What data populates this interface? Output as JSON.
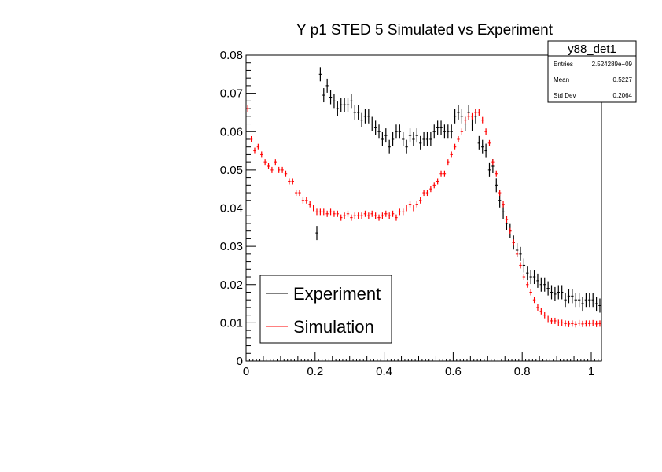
{
  "chart_data": {
    "type": "scatter",
    "title": "Y p1 STED 5 Simulated vs Experiment",
    "xlabel": "",
    "ylabel": "",
    "xlim": [
      0,
      1.03
    ],
    "ylim": [
      0,
      0.08
    ],
    "grid": false,
    "x_ticks": [
      "0",
      "0.2",
      "0.4",
      "0.6",
      "0.8",
      "1"
    ],
    "y_ticks": [
      "0",
      "0.01",
      "0.02",
      "0.03",
      "0.04",
      "0.05",
      "0.06",
      "0.07",
      "0.08"
    ],
    "legend_position": "bottom-left",
    "bin_width": 0.01,
    "series": [
      {
        "name": "Experiment",
        "color": "#000000",
        "x_start": 0.205,
        "values": [
          0.0335,
          0.075,
          0.0695,
          0.072,
          0.069,
          0.068,
          0.066,
          0.067,
          0.067,
          0.067,
          0.068,
          0.065,
          0.065,
          0.063,
          0.064,
          0.064,
          0.062,
          0.061,
          0.06,
          0.058,
          0.059,
          0.056,
          0.058,
          0.06,
          0.06,
          0.058,
          0.056,
          0.059,
          0.058,
          0.059,
          0.057,
          0.058,
          0.058,
          0.058,
          0.06,
          0.061,
          0.061,
          0.06,
          0.06,
          0.06,
          0.064,
          0.065,
          0.064,
          0.062,
          0.065,
          0.062,
          0.064,
          0.057,
          0.056,
          0.055,
          0.05,
          0.051,
          0.046,
          0.042,
          0.039,
          0.036,
          0.034,
          0.031,
          0.029,
          0.028,
          0.025,
          0.023,
          0.022,
          0.022,
          0.021,
          0.02,
          0.02,
          0.019,
          0.018,
          0.0175,
          0.018,
          0.018,
          0.016,
          0.017,
          0.017,
          0.016,
          0.016,
          0.015,
          0.016,
          0.016,
          0.016,
          0.015,
          0.0145
        ]
      },
      {
        "name": "Simulation",
        "color": "#ff0000",
        "x_start": 0.005,
        "values": [
          0.066,
          0.058,
          0.055,
          0.056,
          0.054,
          0.052,
          0.051,
          0.05,
          0.052,
          0.05,
          0.05,
          0.049,
          0.047,
          0.047,
          0.044,
          0.044,
          0.042,
          0.042,
          0.041,
          0.04,
          0.039,
          0.039,
          0.039,
          0.0385,
          0.039,
          0.0385,
          0.0385,
          0.0375,
          0.038,
          0.0385,
          0.0375,
          0.038,
          0.038,
          0.038,
          0.0385,
          0.038,
          0.0385,
          0.038,
          0.0375,
          0.038,
          0.0385,
          0.038,
          0.0385,
          0.0375,
          0.039,
          0.039,
          0.04,
          0.041,
          0.04,
          0.041,
          0.042,
          0.044,
          0.044,
          0.045,
          0.046,
          0.047,
          0.049,
          0.049,
          0.052,
          0.054,
          0.056,
          0.058,
          0.06,
          0.063,
          0.064,
          0.064,
          0.065,
          0.065,
          0.063,
          0.06,
          0.057,
          0.052,
          0.049,
          0.044,
          0.041,
          0.037,
          0.034,
          0.031,
          0.028,
          0.025,
          0.022,
          0.02,
          0.018,
          0.016,
          0.014,
          0.013,
          0.012,
          0.011,
          0.0105,
          0.0105,
          0.01,
          0.01,
          0.0098,
          0.0097,
          0.0098,
          0.0096,
          0.0099,
          0.0097,
          0.0098,
          0.0098,
          0.0099,
          0.0097,
          0.0098
        ]
      }
    ]
  },
  "stats_box": {
    "title": "y88_det1",
    "rows": [
      {
        "label": "Entries",
        "value": "2.524289e+09"
      },
      {
        "label": "Mean",
        "value": "0.5227"
      },
      {
        "label": "Std Dev",
        "value": "0.2064"
      }
    ]
  }
}
